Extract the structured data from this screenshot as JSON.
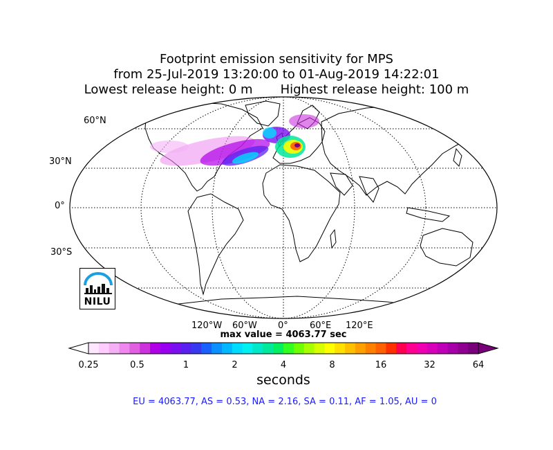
{
  "header": {
    "line1": "Footprint emission sensitivity for MPS",
    "line2": "from 25-Jul-2019 13:20:00 to 01-Aug-2019 14:22:01",
    "line3": "Lowest release height: 0 m       Highest release height: 100 m"
  },
  "map": {
    "projection": "robinson",
    "lat_labels": [
      "60°N",
      "30°N",
      "0°",
      "30°S"
    ],
    "lon_labels": [
      "120°W",
      "60°W",
      "0°",
      "60°E",
      "120°E"
    ],
    "max_label": "max value = 4063.77 sec"
  },
  "colorbar": {
    "ticks": [
      "0.25",
      "0.5",
      "1",
      "2",
      "4",
      "8",
      "16",
      "32",
      "64"
    ],
    "units": "seconds",
    "colors": [
      "#ffe6ff",
      "#ffccff",
      "#f5b0f5",
      "#ee88ee",
      "#e060e0",
      "#cc33dd",
      "#b000e8",
      "#9a00f0",
      "#7a10f0",
      "#5a20f0",
      "#3838f0",
      "#1a60ff",
      "#0a90ff",
      "#00b8ff",
      "#00dcff",
      "#00f0f0",
      "#00e8c8",
      "#00e89a",
      "#00f060",
      "#30ff20",
      "#70ff00",
      "#a8ff00",
      "#d8ff00",
      "#ffff00",
      "#ffe000",
      "#ffc000",
      "#ffa000",
      "#ff8000",
      "#ff6000",
      "#ff3000",
      "#ff0050",
      "#ff0090",
      "#f000b0",
      "#d800b8",
      "#c000b8",
      "#a800a8",
      "#900090",
      "#780078"
    ]
  },
  "regions_line": "EU = 4063.77,  AS = 0.53,  NA = 2.16,  SA = 0.11,  AF = 1.05,  AU = 0",
  "logo": {
    "text": "NILU"
  }
}
